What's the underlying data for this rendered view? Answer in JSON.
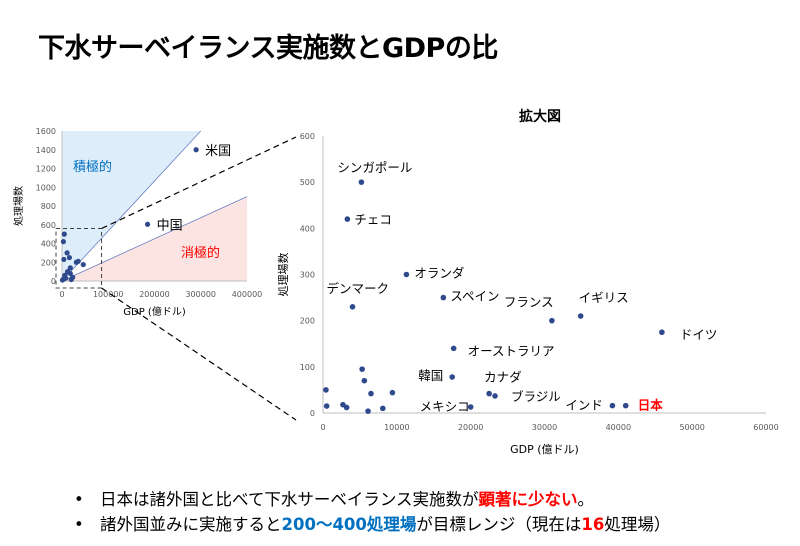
{
  "slide": {
    "title": "下水サーベイランス実施数とGDPの比"
  },
  "chart_data": [
    {
      "type": "scatter",
      "title": "",
      "xlabel": "GDP (億ドル)",
      "ylabel": "処理場数",
      "xlim": [
        0,
        400000
      ],
      "ylim": [
        0,
        1600
      ],
      "xticks": [
        "0",
        "100000",
        "200000",
        "300000",
        "400000"
      ],
      "yticks": [
        "0",
        "200",
        "400",
        "600",
        "800",
        "1000",
        "1200",
        "1400",
        "1600"
      ],
      "regions": {
        "upper": "積極的",
        "lower": "消極的"
      },
      "colors": {
        "upper_fill": "#ddeefa",
        "lower_fill": "#fbe4e1",
        "points": "#2f4a8c",
        "lines": "#6b7fc2"
      },
      "points": [
        {
          "label": "米国",
          "x": 290000,
          "y": 1400
        },
        {
          "label": "中国",
          "x": 185000,
          "y": 605
        },
        {
          "label": "",
          "x": 5000,
          "y": 500
        },
        {
          "label": "",
          "x": 3000,
          "y": 420
        },
        {
          "label": "",
          "x": 11000,
          "y": 300
        },
        {
          "label": "",
          "x": 16000,
          "y": 250
        },
        {
          "label": "",
          "x": 4000,
          "y": 230
        },
        {
          "label": "",
          "x": 31000,
          "y": 200
        },
        {
          "label": "",
          "x": 35000,
          "y": 210
        },
        {
          "label": "",
          "x": 46000,
          "y": 175
        },
        {
          "label": "",
          "x": 18000,
          "y": 140
        },
        {
          "label": "",
          "x": 18000,
          "y": 80
        },
        {
          "label": "",
          "x": 23000,
          "y": 40
        },
        {
          "label": "",
          "x": 20000,
          "y": 15
        },
        {
          "label": "",
          "x": 6000,
          "y": 60
        },
        {
          "label": "",
          "x": 8000,
          "y": 30
        },
        {
          "label": "",
          "x": 3000,
          "y": 20
        },
        {
          "label": "",
          "x": 1000,
          "y": 10
        },
        {
          "label": "",
          "x": 12000,
          "y": 100
        }
      ]
    },
    {
      "type": "scatter",
      "title": "拡大図",
      "xlabel": "GDP (億ドル)",
      "ylabel": "処理場数",
      "xlim": [
        0,
        60000
      ],
      "ylim": [
        0,
        600
      ],
      "xticks": [
        "0",
        "10000",
        "20000",
        "30000",
        "40000",
        "50000",
        "60000"
      ],
      "yticks": [
        "0",
        "100",
        "200",
        "300",
        "400",
        "500",
        "600"
      ],
      "colors": {
        "points": "#2f4a8c",
        "highlight": "#ff0000"
      },
      "points": [
        {
          "label": "シンガポール",
          "x": 5200,
          "y": 500
        },
        {
          "label": "チェコ",
          "x": 3300,
          "y": 420
        },
        {
          "label": "オランダ",
          "x": 11300,
          "y": 300
        },
        {
          "label": "スペイン",
          "x": 16300,
          "y": 250
        },
        {
          "label": "デンマーク",
          "x": 4000,
          "y": 230
        },
        {
          "label": "フランス",
          "x": 31000,
          "y": 200
        },
        {
          "label": "イギリス",
          "x": 34900,
          "y": 210
        },
        {
          "label": "ドイツ",
          "x": 45900,
          "y": 175
        },
        {
          "label": "オーストラリア",
          "x": 17700,
          "y": 140
        },
        {
          "label": "韓国",
          "x": 17500,
          "y": 78
        },
        {
          "label": "カナダ",
          "x": 22500,
          "y": 42
        },
        {
          "label": "ブラジル",
          "x": 23300,
          "y": 37
        },
        {
          "label": "メキシコ",
          "x": 20000,
          "y": 13
        },
        {
          "label": "インド",
          "x": 39200,
          "y": 16
        },
        {
          "label": "日本",
          "x": 41000,
          "y": 16,
          "highlight": true
        },
        {
          "label": "",
          "x": 400,
          "y": 50
        },
        {
          "label": "",
          "x": 500,
          "y": 15
        },
        {
          "label": "",
          "x": 2700,
          "y": 18
        },
        {
          "label": "",
          "x": 3200,
          "y": 12
        },
        {
          "label": "",
          "x": 5300,
          "y": 95
        },
        {
          "label": "",
          "x": 5600,
          "y": 70
        },
        {
          "label": "",
          "x": 6500,
          "y": 42
        },
        {
          "label": "",
          "x": 6100,
          "y": 4
        },
        {
          "label": "",
          "x": 8100,
          "y": 10
        },
        {
          "label": "",
          "x": 9400,
          "y": 44
        }
      ]
    }
  ],
  "bullets": [
    {
      "pre": "日本は諸外国と比べて下水サーベイランス実施数が",
      "em": "顕著に少ない",
      "post": "。"
    },
    {
      "pre": "諸外国並みに実施すると",
      "em": "200～400処理場",
      "mid": "が目標レンジ（現在は",
      "em2": "16",
      "post": "処理場）"
    }
  ]
}
